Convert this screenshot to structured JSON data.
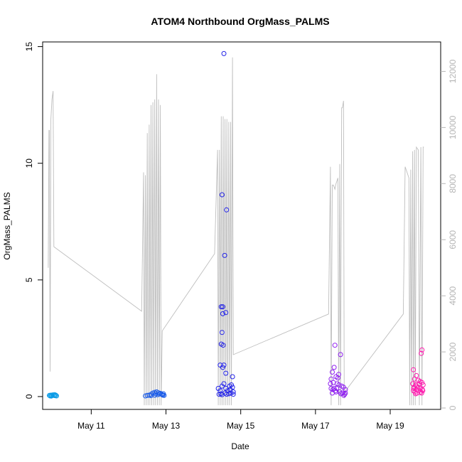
{
  "chart_data": {
    "type": "scatter",
    "title": "ATOM4 Northbound OrgMass_PALMS",
    "xlabel": "Date",
    "ylabel": "OrgMass_PALMS",
    "x_unit": "days in May",
    "xlim": [
      9.7,
      20.35
    ],
    "ylim": [
      -0.55,
      15.2
    ],
    "y2lim": [
      -50,
      13050
    ],
    "x_ticks": [
      11,
      13,
      15,
      17,
      19
    ],
    "x_tick_labels": [
      "May 11",
      "May 13",
      "May 15",
      "May 17",
      "May 19"
    ],
    "y_ticks": [
      0,
      5,
      10,
      15
    ],
    "y_tick_labels": [
      "0",
      "5",
      "10",
      "15"
    ],
    "y2_ticks": [
      0,
      2000,
      4000,
      6000,
      8000,
      10000,
      12000
    ],
    "y2_tick_labels": [
      "0",
      "2000",
      "4000",
      "6000",
      "8000",
      "10000",
      "12000"
    ],
    "grid": false,
    "legend": "none",
    "colors": {
      "altitude_line": "#bebebe",
      "axis": "#000000",
      "right_axis": "#b5b5b5",
      "flight_colors": [
        "#0b9be6",
        "#1a5be8",
        "#2323e8",
        "#8f1ff0",
        "#ff1aae"
      ]
    },
    "series": [
      {
        "role": "OrgMass_PALMS points by flight (circle markers)",
        "flights": [
          {
            "color": "#0b9be6",
            "points": [
              [
                9.88,
                0.05
              ],
              [
                9.9,
                0.03
              ],
              [
                9.92,
                0.06
              ],
              [
                9.95,
                0.04
              ],
              [
                9.97,
                0.07
              ],
              [
                10.0,
                0.05
              ],
              [
                10.03,
                0.04
              ],
              [
                10.05,
                0.06
              ],
              [
                10.07,
                0.03
              ],
              [
                9.93,
                0.02
              ],
              [
                10.02,
                0.08
              ]
            ]
          },
          {
            "color": "#1a5be8",
            "points": [
              [
                12.45,
                0.03
              ],
              [
                12.5,
                0.05
              ],
              [
                12.55,
                0.06
              ],
              [
                12.6,
                0.1
              ],
              [
                12.65,
                0.15
              ],
              [
                12.7,
                0.18
              ],
              [
                12.72,
                0.12
              ],
              [
                12.75,
                0.2
              ],
              [
                12.8,
                0.16
              ],
              [
                12.85,
                0.14
              ],
              [
                12.88,
                0.1
              ],
              [
                12.9,
                0.08
              ],
              [
                12.92,
                0.06
              ],
              [
                12.95,
                0.05
              ],
              [
                12.6,
                0.04
              ],
              [
                12.7,
                0.06
              ],
              [
                12.78,
                0.08
              ],
              [
                12.82,
                0.11
              ],
              [
                12.93,
                0.12
              ]
            ]
          },
          {
            "color": "#2323e8",
            "points": [
              [
                14.55,
                14.7
              ],
              [
                14.62,
                8.0
              ],
              [
                14.5,
                8.65
              ],
              [
                14.57,
                6.05
              ],
              [
                14.48,
                3.85
              ],
              [
                14.52,
                3.85
              ],
              [
                14.52,
                3.55
              ],
              [
                14.6,
                3.6
              ],
              [
                14.5,
                2.75
              ],
              [
                14.48,
                2.25
              ],
              [
                14.53,
                2.2
              ],
              [
                14.45,
                1.35
              ],
              [
                14.52,
                1.25
              ],
              [
                14.55,
                1.35
              ],
              [
                14.6,
                1.0
              ],
              [
                14.78,
                0.85
              ],
              [
                14.4,
                0.35
              ],
              [
                14.45,
                0.25
              ],
              [
                14.5,
                0.45
              ],
              [
                14.55,
                0.55
              ],
              [
                14.6,
                0.35
              ],
              [
                14.65,
                0.25
              ],
              [
                14.7,
                0.45
              ],
              [
                14.72,
                0.3
              ],
              [
                14.75,
                0.5
              ],
              [
                14.78,
                0.4
              ],
              [
                14.8,
                0.2
              ],
              [
                14.42,
                0.1
              ],
              [
                14.47,
                0.12
              ],
              [
                14.5,
                0.08
              ],
              [
                14.58,
                0.15
              ],
              [
                14.62,
                0.1
              ],
              [
                14.68,
                0.12
              ],
              [
                14.74,
                0.15
              ],
              [
                14.8,
                0.1
              ]
            ]
          },
          {
            "color": "#8f1ff0",
            "points": [
              [
                17.52,
                2.2
              ],
              [
                17.67,
                1.8
              ],
              [
                17.5,
                1.25
              ],
              [
                17.45,
                1.05
              ],
              [
                17.62,
                0.95
              ],
              [
                17.42,
                0.75
              ],
              [
                17.55,
                0.85
              ],
              [
                17.6,
                0.8
              ],
              [
                17.4,
                0.55
              ],
              [
                17.48,
                0.6
              ],
              [
                17.58,
                0.55
              ],
              [
                17.63,
                0.5
              ],
              [
                17.7,
                0.45
              ],
              [
                17.75,
                0.4
              ],
              [
                17.8,
                0.3
              ],
              [
                17.42,
                0.35
              ],
              [
                17.47,
                0.3
              ],
              [
                17.53,
                0.25
              ],
              [
                17.57,
                0.35
              ],
              [
                17.65,
                0.2
              ],
              [
                17.72,
                0.15
              ],
              [
                17.78,
                0.1
              ],
              [
                17.45,
                0.15
              ],
              [
                17.55,
                0.2
              ],
              [
                17.68,
                0.12
              ],
              [
                17.76,
                0.05
              ],
              [
                17.8,
                0.15
              ],
              [
                17.5,
                0.35
              ]
            ]
          },
          {
            "color": "#ff1aae",
            "points": [
              [
                19.85,
                2.0
              ],
              [
                19.83,
                1.85
              ],
              [
                19.62,
                1.15
              ],
              [
                19.7,
                0.9
              ],
              [
                19.65,
                0.75
              ],
              [
                19.75,
                0.7
              ],
              [
                19.8,
                0.65
              ],
              [
                19.6,
                0.55
              ],
              [
                19.68,
                0.5
              ],
              [
                19.78,
                0.55
              ],
              [
                19.85,
                0.6
              ],
              [
                19.88,
                0.5
              ],
              [
                19.63,
                0.35
              ],
              [
                19.7,
                0.3
              ],
              [
                19.74,
                0.4
              ],
              [
                19.8,
                0.35
              ],
              [
                19.86,
                0.3
              ],
              [
                19.66,
                0.2
              ],
              [
                19.72,
                0.15
              ],
              [
                19.82,
                0.2
              ],
              [
                19.62,
                0.25
              ],
              [
                19.68,
                0.12
              ],
              [
                19.76,
                0.25
              ],
              [
                19.84,
                0.15
              ],
              [
                19.87,
                0.25
              ],
              [
                19.64,
                0.4
              ],
              [
                19.7,
                0.45
              ]
            ]
          }
        ]
      },
      {
        "role": "altitude trace (gray line, right axis)",
        "color": "#bebebe",
        "points": [
          [
            9.85,
            5000
          ],
          [
            9.87,
            9900
          ],
          [
            9.88,
            9900
          ],
          [
            9.9,
            1300
          ],
          [
            9.92,
            10300
          ],
          [
            9.95,
            11000
          ],
          [
            9.98,
            11300
          ],
          [
            10.0,
            5750
          ],
          [
            12.35,
            3450
          ],
          [
            12.4,
            8400
          ],
          [
            12.42,
            100
          ],
          [
            12.45,
            8300
          ],
          [
            12.47,
            100
          ],
          [
            12.5,
            9800
          ],
          [
            12.52,
            100
          ],
          [
            12.55,
            10100
          ],
          [
            12.57,
            100
          ],
          [
            12.6,
            10800
          ],
          [
            12.62,
            100
          ],
          [
            12.65,
            10900
          ],
          [
            12.67,
            100
          ],
          [
            12.7,
            11000
          ],
          [
            12.72,
            100
          ],
          [
            12.75,
            11900
          ],
          [
            12.77,
            100
          ],
          [
            12.8,
            11000
          ],
          [
            12.82,
            100
          ],
          [
            12.85,
            10800
          ],
          [
            12.87,
            100
          ],
          [
            12.9,
            2750
          ],
          [
            14.3,
            5500
          ],
          [
            14.38,
            9200
          ],
          [
            14.4,
            100
          ],
          [
            14.43,
            9200
          ],
          [
            14.45,
            100
          ],
          [
            14.48,
            10400
          ],
          [
            14.5,
            100
          ],
          [
            14.53,
            10400
          ],
          [
            14.55,
            100
          ],
          [
            14.58,
            10300
          ],
          [
            14.6,
            100
          ],
          [
            14.63,
            10300
          ],
          [
            14.65,
            100
          ],
          [
            14.68,
            10200
          ],
          [
            14.7,
            100
          ],
          [
            14.73,
            10200
          ],
          [
            14.75,
            100
          ],
          [
            14.78,
            12500
          ],
          [
            14.8,
            1900
          ],
          [
            17.35,
            3350
          ],
          [
            17.4,
            8600
          ],
          [
            17.42,
            100
          ],
          [
            17.45,
            7950
          ],
          [
            17.48,
            7950
          ],
          [
            17.52,
            7800
          ],
          [
            17.55,
            8000
          ],
          [
            17.6,
            8200
          ],
          [
            17.62,
            100
          ],
          [
            17.65,
            8700
          ],
          [
            17.67,
            100
          ],
          [
            17.7,
            10700
          ],
          [
            17.72,
            10700
          ],
          [
            17.75,
            10950
          ],
          [
            17.77,
            350
          ],
          [
            17.8,
            600
          ],
          [
            19.35,
            3350
          ],
          [
            19.4,
            8600
          ],
          [
            19.45,
            8400
          ],
          [
            19.5,
            8200
          ],
          [
            19.52,
            100
          ],
          [
            19.55,
            8500
          ],
          [
            19.57,
            100
          ],
          [
            19.6,
            9150
          ],
          [
            19.62,
            100
          ],
          [
            19.65,
            9200
          ],
          [
            19.67,
            100
          ],
          [
            19.7,
            9300
          ],
          [
            19.75,
            9200
          ],
          [
            19.78,
            100
          ],
          [
            19.82,
            9300
          ],
          [
            19.85,
            100
          ],
          [
            19.88,
            9300
          ],
          [
            19.9,
            9300
          ]
        ]
      }
    ]
  }
}
